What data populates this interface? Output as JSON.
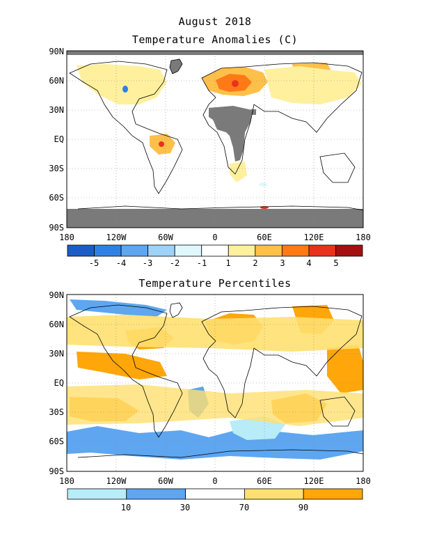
{
  "header": {
    "title": "August 2018",
    "map1_title": "Temperature Anomalies (C)",
    "map2_title": "Temperature Percentiles"
  },
  "axes": {
    "lat_labels": [
      "90N",
      "60N",
      "30N",
      "EQ",
      "30S",
      "60S",
      "90S"
    ],
    "lon_labels": [
      "180",
      "120W",
      "60W",
      "0",
      "60E",
      "120E",
      "180"
    ]
  },
  "anomaly_legend": {
    "labels": [
      "-5",
      "-4",
      "-3",
      "-2",
      "-1",
      "1",
      "2",
      "3",
      "4",
      "5"
    ],
    "colors": [
      "#1b5cc8",
      "#2f80e6",
      "#5ea6f0",
      "#9ed2f8",
      "#dff8ff",
      "#ffffff",
      "#fff09e",
      "#ffc04a",
      "#ff7a14",
      "#e8321a",
      "#a50f0f"
    ]
  },
  "percentile_legend": {
    "labels": [
      "10",
      "30",
      "70",
      "90"
    ],
    "colors": [
      "#b8ecf8",
      "#5ea6f0",
      "#ffffff",
      "#ffe070",
      "#ffa60a"
    ]
  },
  "map_colors": {
    "missing": "#7a7a7a",
    "coast": "#000000"
  }
}
